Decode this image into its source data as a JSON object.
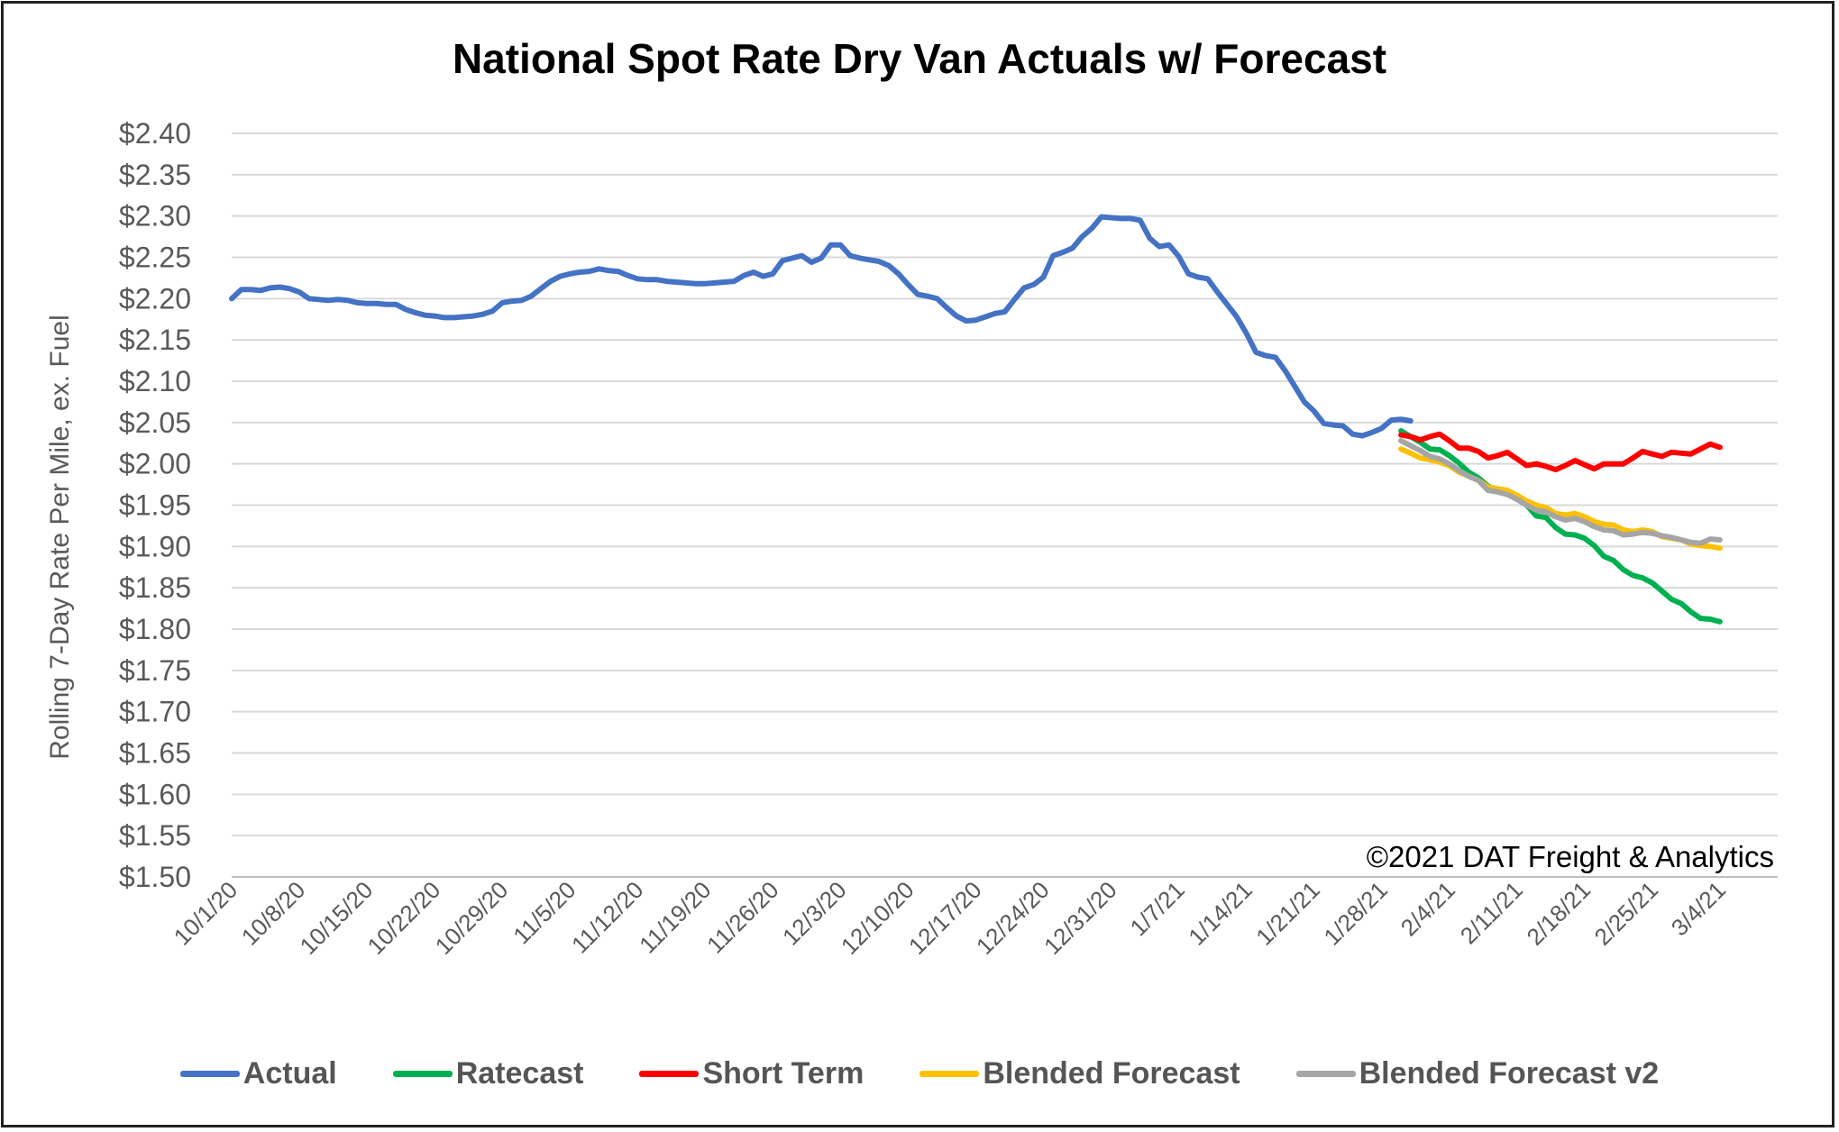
{
  "chart_data": {
    "type": "line",
    "title": "National Spot Rate Dry Van Actuals w/ Forecast",
    "ylabel": "Rolling 7-Day Rate Per Mile, ex. Fuel",
    "xlabel": "",
    "ylim": [
      1.5,
      2.4
    ],
    "yticks": [
      "$2.40",
      "$2.35",
      "$2.30",
      "$2.25",
      "$2.20",
      "$2.15",
      "$2.10",
      "$2.05",
      "$2.00",
      "$1.95",
      "$1.90",
      "$1.85",
      "$1.80",
      "$1.75",
      "$1.70",
      "$1.65",
      "$1.60",
      "$1.55",
      "$1.50"
    ],
    "xticks": [
      "10/1/20",
      "10/8/20",
      "10/15/20",
      "10/22/20",
      "10/29/20",
      "11/5/20",
      "11/12/20",
      "11/19/20",
      "11/26/20",
      "12/3/20",
      "12/10/20",
      "12/17/20",
      "12/24/20",
      "12/31/20",
      "1/7/21",
      "1/14/21",
      "1/21/21",
      "1/28/21",
      "2/4/21",
      "2/11/21",
      "2/18/21",
      "2/25/21",
      "3/4/21"
    ],
    "x_start": "10/1/20",
    "annotation": "©2021 DAT Freight & Analytics",
    "grid": true,
    "legend_position": "bottom",
    "series": [
      {
        "name": "Actual",
        "color": "#4472C4",
        "start_index": 0,
        "values": [
          2.2,
          2.211,
          2.211,
          2.21,
          2.213,
          2.214,
          2.212,
          2.208,
          2.2,
          2.199,
          2.198,
          2.199,
          2.198,
          2.195,
          2.194,
          2.194,
          2.193,
          2.193,
          2.187,
          2.183,
          2.18,
          2.179,
          2.177,
          2.177,
          2.178,
          2.179,
          2.181,
          2.185,
          2.195,
          2.197,
          2.198,
          2.203,
          2.212,
          2.221,
          2.227,
          2.23,
          2.232,
          2.233,
          2.236,
          2.234,
          2.233,
          2.228,
          2.224,
          2.223,
          2.223,
          2.221,
          2.22,
          2.219,
          2.218,
          2.218,
          2.219,
          2.22,
          2.221,
          2.228,
          2.232,
          2.227,
          2.23,
          2.246,
          2.249,
          2.252,
          2.244,
          2.249,
          2.265,
          2.265,
          2.252,
          2.249,
          2.247,
          2.245,
          2.24,
          2.23,
          2.217,
          2.205,
          2.203,
          2.2,
          2.189,
          2.179,
          2.173,
          2.174,
          2.178,
          2.182,
          2.184,
          2.199,
          2.213,
          2.217,
          2.226,
          2.252,
          2.256,
          2.261,
          2.275,
          2.285,
          2.299,
          2.298,
          2.297,
          2.297,
          2.295,
          2.273,
          2.263,
          2.265,
          2.251,
          2.23,
          2.226,
          2.224,
          2.208,
          2.193,
          2.178,
          2.158,
          2.135,
          2.131,
          2.129,
          2.113,
          2.094,
          2.075,
          2.064,
          2.049,
          2.047,
          2.046,
          2.036,
          2.034,
          2.038,
          2.043,
          2.053,
          2.054,
          2.052
        ]
      },
      {
        "name": "Ratecast",
        "color": "#00B050",
        "start_index": 121,
        "values": [
          2.04,
          2.033,
          2.026,
          2.018,
          2.017,
          2.01,
          2.001,
          1.99,
          1.983,
          1.973,
          1.968,
          1.966,
          1.958,
          1.95,
          1.937,
          1.935,
          1.923,
          1.915,
          1.914,
          1.91,
          1.901,
          1.888,
          1.883,
          1.872,
          1.865,
          1.862,
          1.856,
          1.846,
          1.836,
          1.831,
          1.821,
          1.813,
          1.812,
          1.809
        ]
      },
      {
        "name": "Short Term",
        "color": "#FF0000",
        "start_index": 121,
        "values": [
          2.035,
          2.033,
          2.029,
          2.033,
          2.036,
          2.028,
          2.019,
          2.019,
          2.015,
          2.007,
          2.01,
          2.014,
          2.006,
          1.998,
          2.0,
          1.997,
          1.993,
          1.998,
          2.004,
          1.999,
          1.994,
          2.0,
          2.0,
          2.0,
          2.007,
          2.015,
          2.012,
          2.009,
          2.014,
          2.013,
          2.012,
          2.018,
          2.024,
          2.02
        ]
      },
      {
        "name": "Blended Forecast",
        "color": "#FFC000",
        "start_index": 121,
        "values": [
          2.018,
          2.013,
          2.007,
          2.005,
          2.002,
          1.998,
          1.99,
          1.985,
          1.98,
          1.972,
          1.97,
          1.968,
          1.962,
          1.955,
          1.95,
          1.947,
          1.94,
          1.938,
          1.94,
          1.936,
          1.93,
          1.927,
          1.926,
          1.92,
          1.918,
          1.92,
          1.918,
          1.912,
          1.91,
          1.908,
          1.903,
          1.901,
          1.9,
          1.898
        ]
      },
      {
        "name": "Blended Forecast v2",
        "color": "#A5A5A5",
        "start_index": 121,
        "values": [
          2.028,
          2.022,
          2.016,
          2.009,
          2.006,
          2.0,
          1.992,
          1.985,
          1.98,
          1.968,
          1.966,
          1.963,
          1.957,
          1.95,
          1.944,
          1.942,
          1.936,
          1.932,
          1.934,
          1.93,
          1.924,
          1.92,
          1.919,
          1.914,
          1.915,
          1.917,
          1.916,
          1.913,
          1.911,
          1.908,
          1.905,
          1.904,
          1.909,
          1.908
        ]
      }
    ]
  }
}
